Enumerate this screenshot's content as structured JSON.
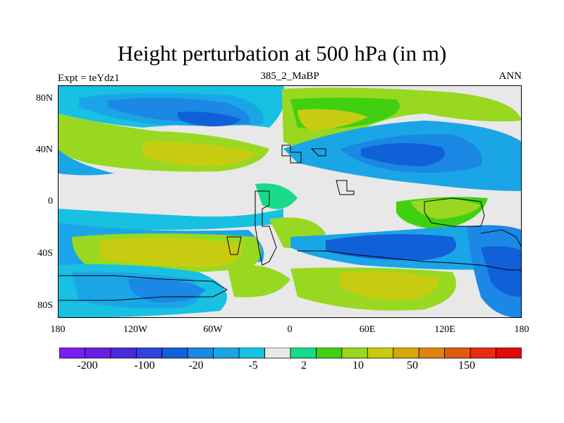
{
  "title": "Height perturbation at 500 hPa (in m)",
  "left_label": "Expt = teYdz1",
  "center_label": "385_2_MaBP",
  "right_label": "ANN",
  "y_tick_labels": [
    "80N",
    "40N",
    "0",
    "40S",
    "80S"
  ],
  "x_tick_labels": [
    "180",
    "120W",
    "60W",
    "0",
    "60E",
    "120E",
    "180"
  ],
  "colorbar_labels": [
    "-200",
    "-100",
    "-20",
    "-5",
    "2",
    "10",
    "50",
    "150"
  ],
  "colorbar_colors": [
    "#7c1cf0",
    "#6a1fe0",
    "#4a2ad8",
    "#2f44d8",
    "#1060d8",
    "#1a88e4",
    "#1aa6e6",
    "#18c0e2",
    "#e8e8e8",
    "#18da8a",
    "#40d010",
    "#98d820",
    "#c8cc10",
    "#d6a80c",
    "#dc8410",
    "#e05a10",
    "#e82a10",
    "#e00a0a"
  ],
  "map_colors": {
    "deep_blue": "#1060d8",
    "blue": "#1a88e4",
    "light_blue": "#1aa6e6",
    "cyan": "#18c0e2",
    "neutral": "#e8e8e8",
    "teal": "#18da8a",
    "green": "#40d010",
    "yellow_green": "#98d820",
    "mustard": "#c8cc10"
  }
}
